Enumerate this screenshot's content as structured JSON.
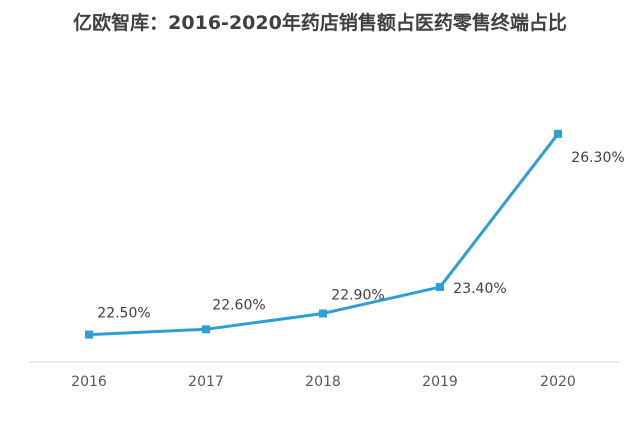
{
  "chart_data": {
    "type": "line",
    "title": "亿欧智库：2016-2020年药店销售额占医药零售终端占比",
    "xlabel": "",
    "ylabel": "",
    "categories": [
      "2016",
      "2017",
      "2018",
      "2019",
      "2020"
    ],
    "series": [
      {
        "values": [
          22.5,
          22.6,
          22.9,
          23.4,
          26.3
        ],
        "labels": [
          "22.50%",
          "22.60%",
          "22.90%",
          "23.40%",
          "26.30%"
        ]
      }
    ],
    "ylim": [
      22.0,
      26.6
    ],
    "grid": false,
    "legend": "none",
    "line_color": "#2E9FD4",
    "axis_color": "#D9D9D9"
  }
}
